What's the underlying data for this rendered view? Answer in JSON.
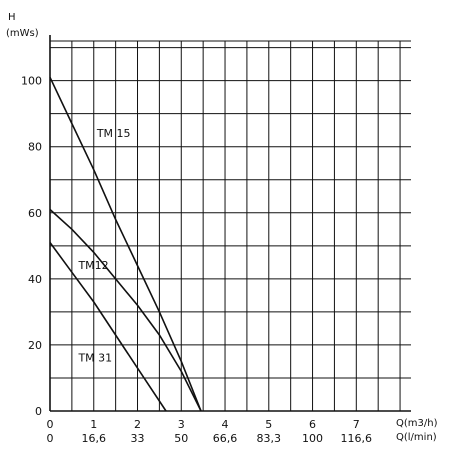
{
  "chart_data": {
    "type": "line",
    "ylabel": "H",
    "yunit": "(mWs)",
    "xlabel_primary": "Q(m3/h)",
    "xlabel_secondary": "Q(l/min)",
    "xlim": [
      0,
      8.25
    ],
    "ylim": [
      0,
      112
    ],
    "grid": true,
    "x_ticks": [
      {
        "value": 0,
        "label": "0"
      },
      {
        "value": 1,
        "label": "1"
      },
      {
        "value": 2,
        "label": "2"
      },
      {
        "value": 3,
        "label": "3"
      },
      {
        "value": 4,
        "label": "4"
      },
      {
        "value": 5,
        "label": "5"
      },
      {
        "value": 6,
        "label": "6"
      },
      {
        "value": 7,
        "label": "7"
      }
    ],
    "x_ticks_secondary": [
      {
        "value": 0,
        "label": "0"
      },
      {
        "value": 1,
        "label": "16,6"
      },
      {
        "value": 2,
        "label": "33"
      },
      {
        "value": 3,
        "label": "50"
      },
      {
        "value": 4,
        "label": "66,6"
      },
      {
        "value": 5,
        "label": "83,3"
      },
      {
        "value": 6,
        "label": "100"
      },
      {
        "value": 7,
        "label": "116,6"
      }
    ],
    "y_ticks": [
      {
        "value": 0,
        "label": "0"
      },
      {
        "value": 20,
        "label": "20"
      },
      {
        "value": 40,
        "label": "40"
      },
      {
        "value": 60,
        "label": "60"
      },
      {
        "value": 80,
        "label": "80"
      },
      {
        "value": 100,
        "label": "100"
      }
    ],
    "series": [
      {
        "name": "TM 15",
        "label_at": [
          1.07,
          83
        ],
        "points": [
          [
            0,
            101
          ],
          [
            0.5,
            87
          ],
          [
            1.0,
            73
          ],
          [
            1.5,
            58
          ],
          [
            2.0,
            44
          ],
          [
            2.5,
            30
          ],
          [
            3.0,
            15
          ],
          [
            3.45,
            0
          ]
        ]
      },
      {
        "name": "TM12",
        "label_at": [
          0.65,
          43
        ],
        "points": [
          [
            0,
            61
          ],
          [
            0.5,
            55
          ],
          [
            1.0,
            48
          ],
          [
            1.5,
            40
          ],
          [
            2.0,
            32
          ],
          [
            2.5,
            23
          ],
          [
            3.0,
            12
          ],
          [
            3.45,
            0
          ]
        ]
      },
      {
        "name": "TM 31",
        "label_at": [
          0.65,
          15
        ],
        "points": [
          [
            0,
            51
          ],
          [
            0.5,
            42
          ],
          [
            1.0,
            33
          ],
          [
            1.5,
            23
          ],
          [
            2.0,
            13
          ],
          [
            2.65,
            0
          ]
        ]
      }
    ]
  }
}
